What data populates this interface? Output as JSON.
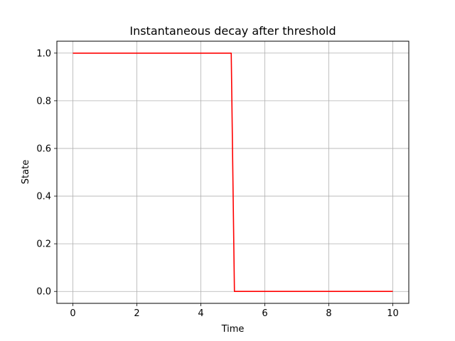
{
  "chart_data": {
    "type": "line",
    "title": "Instantaneous decay after threshold",
    "xlabel": "Time",
    "ylabel": "State",
    "xlim": [
      -0.5,
      10.5
    ],
    "ylim": [
      -0.05,
      1.05
    ],
    "xticks": [
      0,
      2,
      4,
      6,
      8,
      10
    ],
    "xtick_labels": [
      "0",
      "2",
      "4",
      "6",
      "8",
      "10"
    ],
    "yticks": [
      0.0,
      0.2,
      0.4,
      0.6,
      0.8,
      1.0
    ],
    "ytick_labels": [
      "0.0",
      "0.2",
      "0.4",
      "0.6",
      "0.8",
      "1.0"
    ],
    "grid": true,
    "series": [
      {
        "color": "#ff0000",
        "x": [
          0,
          4.95,
          5.05,
          10
        ],
        "y": [
          1.0,
          1.0,
          0.0,
          0.0
        ]
      }
    ]
  }
}
